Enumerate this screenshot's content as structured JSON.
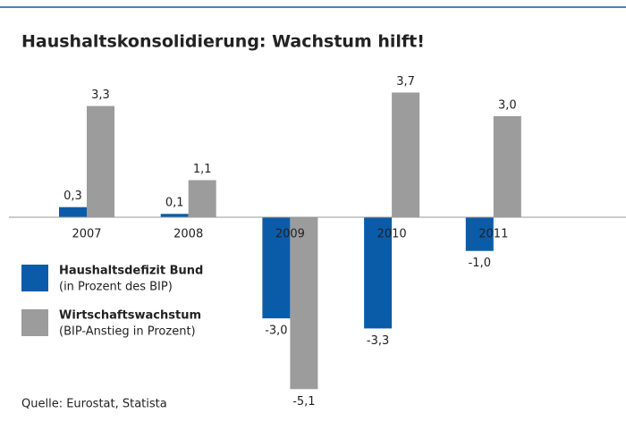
{
  "chart_data": {
    "type": "bar",
    "title": "Haushaltskonsolidierung: Wachstum hilft!",
    "categories": [
      "2007",
      "2008",
      "2009",
      "2010",
      "2011"
    ],
    "series": [
      {
        "name": "Haushaltsdefizit Bund",
        "unit": "(in Prozent des BIP)",
        "color": "#0b5ca8",
        "values": [
          0.3,
          0.1,
          -3.0,
          -3.3,
          -1.0
        ],
        "value_labels": [
          "0,3",
          "0,1",
          "-3,0",
          "-3,3",
          "-1,0"
        ]
      },
      {
        "name": "Wirtschaftswachstum",
        "unit": "(BIP-Anstieg in Prozent)",
        "color": "#9c9c9d",
        "values": [
          3.3,
          1.1,
          -5.1,
          3.7,
          3.0
        ],
        "value_labels": [
          "3,3",
          "1,1",
          "-5,1",
          "3,7",
          "3,0"
        ]
      }
    ],
    "ylim": [
      -5.5,
      4.5
    ],
    "source": "Quelle: Eurostat, Statista"
  }
}
